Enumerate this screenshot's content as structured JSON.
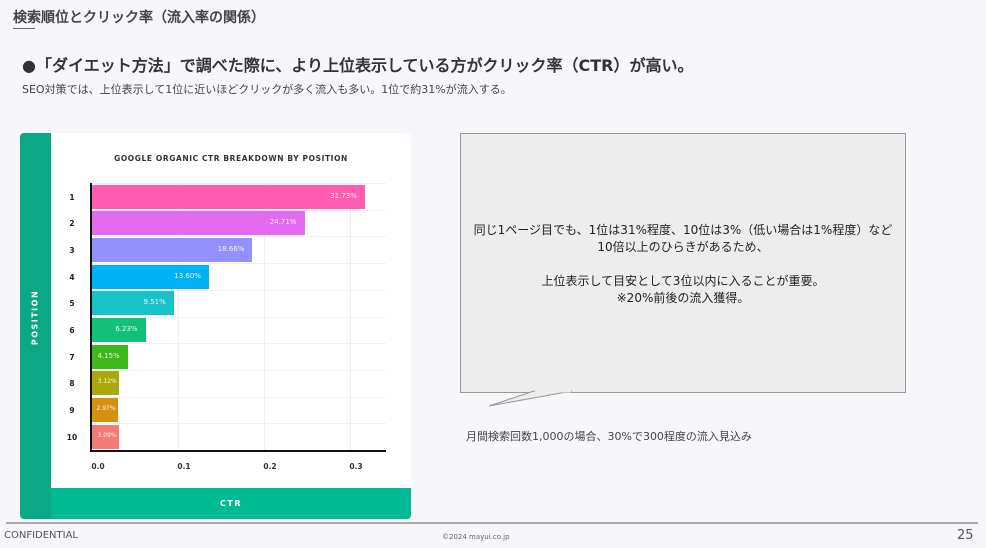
{
  "header": {
    "title": "検索順位とクリック率（流入率の関係）",
    "headline": "●「ダイエット方法」で調べた際に、より上位表示している方がクリック率（CTR）が高い。",
    "subline": "SEO対策では、上位表示して1位に近いほどクリックが多く流入も多い。1位で約31%が流入する。"
  },
  "chart_data": {
    "type": "bar",
    "orientation": "horizontal",
    "title": "GOOGLE ORGANIC CTR BREAKDOWN BY POSITION",
    "xlabel": "CTR",
    "ylabel": "POSITION",
    "categories": [
      "1",
      "2",
      "3",
      "4",
      "5",
      "6",
      "7",
      "8",
      "9",
      "10"
    ],
    "values": [
      0.3173,
      0.2471,
      0.1866,
      0.136,
      0.0951,
      0.0623,
      0.0415,
      0.0312,
      0.0297,
      0.0309
    ],
    "labels": [
      "31.73%",
      "24.71%",
      "18.66%",
      "13.60%",
      "9.51%",
      "6.23%",
      "4.15%",
      "3.12%",
      "2.97%",
      "3.09%"
    ],
    "colors": [
      "#ff5cb2",
      "#e46bf0",
      "#9390ff",
      "#00b1f5",
      "#17c2c9",
      "#12c07a",
      "#3cb81b",
      "#a9a80d",
      "#d4900f",
      "#f47a76"
    ],
    "xticks": [
      "0.0",
      "0.1",
      "0.2",
      "0.3"
    ],
    "xlim": [
      0,
      0.34
    ],
    "grid": true,
    "legend": "none"
  },
  "callout": {
    "line1": "同じ1ページ目でも、1位は31%程度、10位は3%（低い場合は1%程度）など10倍以上のひらきがあるため、",
    "line2": "上位表示して目安として3位以内に入ることが重要。",
    "line3": "※20%前後の流入獲得。"
  },
  "note": "月間検索回数1,000の場合、30%で300程度の流入見込み",
  "footer": {
    "confidential": "CONFIDENTIAL",
    "copyright": "©2024 mayui.co.jp",
    "page": "25"
  },
  "colors": {
    "accent_dark": "#0aa884",
    "accent": "#00bb94"
  }
}
